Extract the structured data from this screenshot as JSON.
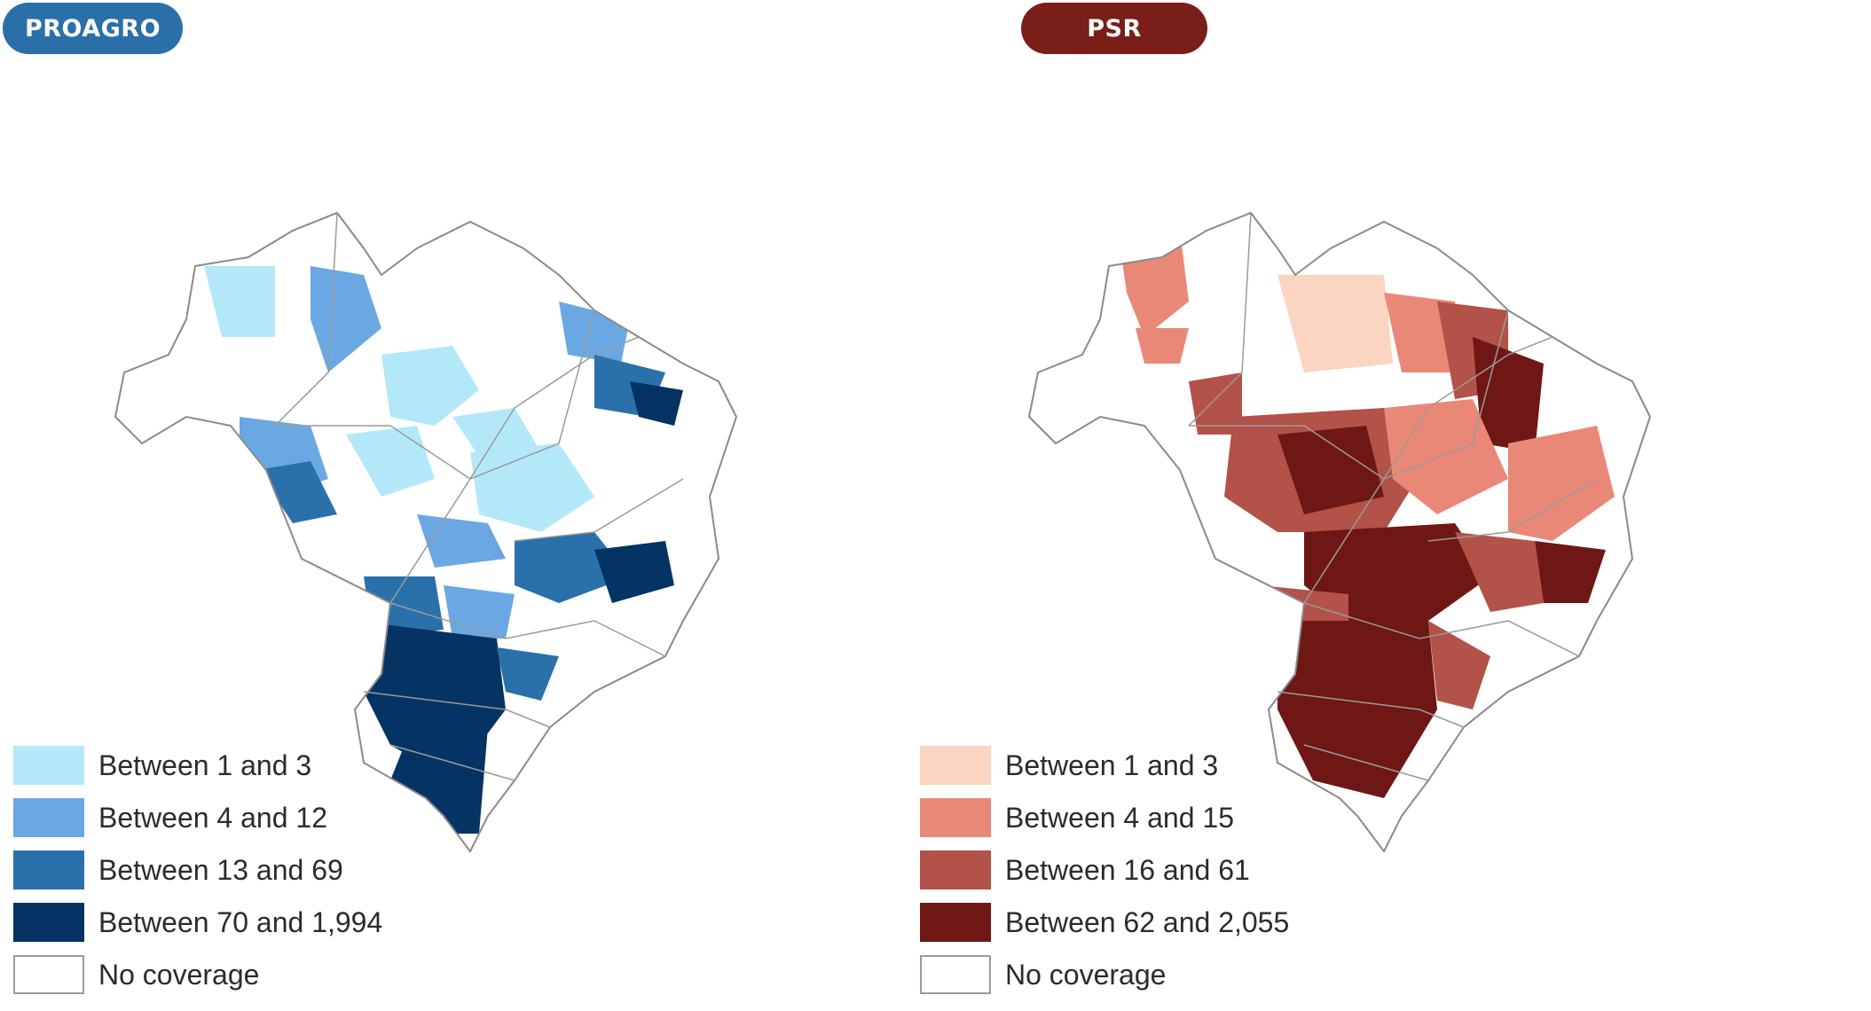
{
  "panels": [
    {
      "title": "PROAGRO",
      "title_color": "#2a6fa8",
      "legend": [
        {
          "label": "Between 1 and 3",
          "color": "#b3e8f9"
        },
        {
          "label": "Between 4 and 12",
          "color": "#6aa8e4"
        },
        {
          "label": "Between 13 and 69",
          "color": "#2a70ab"
        },
        {
          "label": "Between 70 and 1,994",
          "color": "#053363"
        },
        {
          "label": "No coverage",
          "color": "#ffffff"
        }
      ]
    },
    {
      "title": "PSR",
      "title_color": "#7a1e1a",
      "legend": [
        {
          "label": "Between 1 and 3",
          "color": "#fbd4c2"
        },
        {
          "label": "Between 4 and 15",
          "color": "#ea8878"
        },
        {
          "label": "Between 16 and 61",
          "color": "#b25248"
        },
        {
          "label": "Between 62 and 2,055",
          "color": "#6e1715"
        },
        {
          "label": "No coverage",
          "color": "#ffffff"
        }
      ]
    }
  ]
}
